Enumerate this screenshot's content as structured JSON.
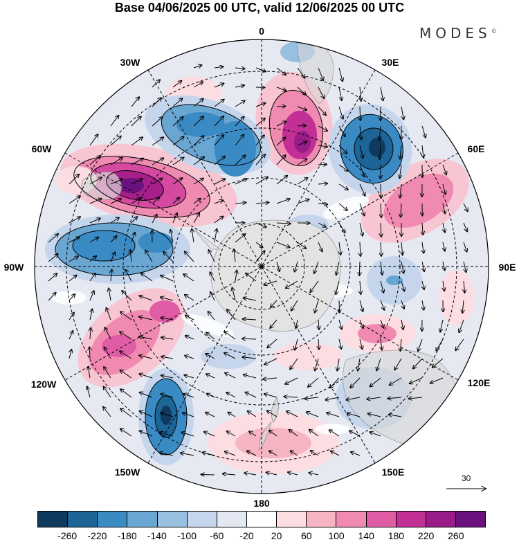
{
  "title": "Base 04/06/2025 00 UTC, valid 12/06/2025 00 UTC",
  "brand": "MODES",
  "brand_mark": "©",
  "projection": "south-polar-stereographic",
  "longitude_labels": [
    "0",
    "30E",
    "60E",
    "90E",
    "120E",
    "150E",
    "180",
    "150W",
    "120W",
    "90W",
    "60W",
    "30W"
  ],
  "reference_vector": {
    "value": "30"
  },
  "colorbar": {
    "colors": [
      "#0e3a5e",
      "#1d6497",
      "#3a8ac4",
      "#6aa6d2",
      "#97bfe0",
      "#c4d5ec",
      "#e3e7f2",
      "#ffffff",
      "#fbdde2",
      "#f7b5c4",
      "#f08ab0",
      "#e05ca4",
      "#c23096",
      "#991c88",
      "#6b1280"
    ],
    "tick_labels": [
      "-260",
      "-220",
      "-180",
      "-140",
      "-100",
      "-60",
      "-20",
      "20",
      "60",
      "100",
      "140",
      "180",
      "220",
      "260"
    ]
  },
  "anomaly_centers": [
    {
      "sign": "negative",
      "level": "-260",
      "region": "south-east Atlantic / Indian sector near 40E"
    },
    {
      "sign": "negative",
      "level": "-180",
      "region": "South Atlantic near 20W"
    },
    {
      "sign": "positive",
      "level": "260",
      "region": "South Atlantic near 60W"
    },
    {
      "sign": "positive",
      "level": "220",
      "region": "south of Africa near 10E"
    },
    {
      "sign": "negative",
      "level": "-180",
      "region": "Amundsen / Bellingshausen sector near 90W"
    },
    {
      "sign": "positive",
      "level": "180",
      "region": "South Pacific near 110W"
    },
    {
      "sign": "negative",
      "level": "-260",
      "region": "South Pacific near 145W"
    },
    {
      "sign": "positive",
      "level": "140",
      "region": "Indian Ocean near 65E"
    },
    {
      "sign": "positive",
      "level": "100",
      "region": "south of New Zealand near 170E"
    }
  ]
}
